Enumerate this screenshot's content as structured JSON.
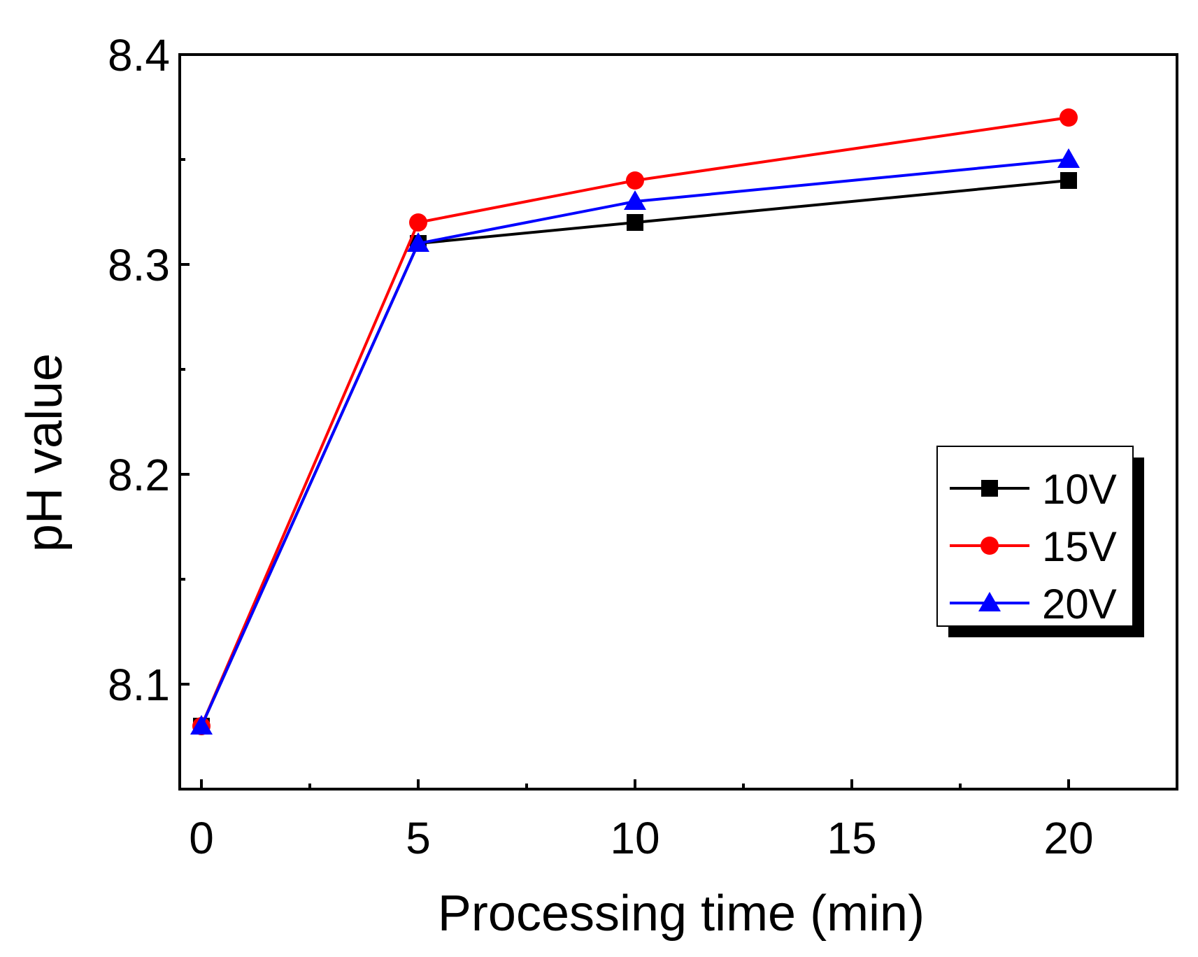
{
  "chart_data": {
    "type": "line",
    "title": "",
    "xlabel": "Processing time (min)",
    "ylabel": "pH value",
    "xlim": [
      -0.5,
      22.5
    ],
    "ylim": [
      8.05,
      8.4
    ],
    "x_ticks": [
      0,
      5,
      10,
      15,
      20
    ],
    "x_tick_labels": [
      "0",
      "5",
      "10",
      "15",
      "20"
    ],
    "x_minor_ticks": [
      2.5,
      7.5,
      12.5,
      17.5
    ],
    "y_ticks": [
      8.1,
      8.2,
      8.3,
      8.4
    ],
    "y_tick_labels": [
      "8.1",
      "8.2",
      "8.3",
      "8.4"
    ],
    "y_minor_ticks": [
      8.15,
      8.25,
      8.35
    ],
    "grid": false,
    "legend_position": "right",
    "x": [
      0,
      5,
      10,
      20
    ],
    "series": [
      {
        "name": "10V",
        "values": [
          8.08,
          8.31,
          8.32,
          8.34
        ],
        "color": "#000000",
        "marker": "square"
      },
      {
        "name": "15V",
        "values": [
          8.08,
          8.32,
          8.34,
          8.37
        ],
        "color": "#ff0000",
        "marker": "circle"
      },
      {
        "name": "20V",
        "values": [
          8.08,
          8.31,
          8.33,
          8.35
        ],
        "color": "#0000ff",
        "marker": "triangle"
      }
    ]
  }
}
